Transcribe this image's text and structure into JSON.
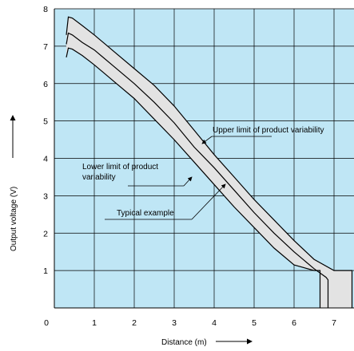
{
  "chart_data": {
    "type": "area",
    "title": "",
    "xlabel": "Distance (m)",
    "ylabel": "Output voltage (V)",
    "xlim": [
      0,
      7.5
    ],
    "ylim": [
      0,
      8
    ],
    "x_ticks": [
      "0",
      "1",
      "2",
      "3",
      "4",
      "5",
      "6",
      "7"
    ],
    "y_ticks": [
      "1",
      "2",
      "3",
      "4",
      "5",
      "6",
      "7",
      "8"
    ],
    "grid": true,
    "background_color": "#bfe6f5",
    "band_color": "#e3e3e3",
    "series": [
      {
        "name": "Upper limit of product variability",
        "x": [
          0.3,
          0.35,
          0.45,
          0.7,
          1.0,
          1.5,
          2.0,
          2.5,
          3.0,
          3.5,
          4.0,
          4.5,
          5.0,
          5.5,
          6.0,
          6.5,
          7.0,
          7.45,
          7.45
        ],
        "y": [
          7.3,
          7.78,
          7.75,
          7.55,
          7.3,
          6.85,
          6.4,
          5.95,
          5.4,
          4.75,
          4.1,
          3.5,
          2.9,
          2.35,
          1.8,
          1.3,
          1.0,
          1.0,
          0
        ]
      },
      {
        "name": "Typical example",
        "x": [
          0.3,
          0.35,
          0.45,
          0.7,
          1.0,
          1.5,
          2.0,
          2.5,
          3.0,
          3.5,
          4.0,
          4.5,
          5.0,
          5.5,
          6.0,
          6.5,
          6.8,
          6.85,
          6.85
        ],
        "y": [
          7.05,
          7.35,
          7.3,
          7.1,
          6.9,
          6.45,
          6.0,
          5.5,
          4.95,
          4.3,
          3.75,
          3.15,
          2.55,
          2.0,
          1.5,
          1.05,
          0.82,
          0.75,
          0
        ]
      },
      {
        "name": "Lower limit of product variability",
        "x": [
          0.3,
          0.35,
          0.45,
          0.7,
          1.0,
          1.5,
          2.0,
          2.5,
          3.0,
          3.5,
          4.0,
          4.5,
          5.0,
          5.5,
          6.0,
          6.5,
          6.65,
          6.65
        ],
        "y": [
          6.7,
          6.95,
          6.92,
          6.75,
          6.5,
          6.05,
          5.6,
          5.05,
          4.5,
          3.9,
          3.3,
          2.7,
          2.15,
          1.6,
          1.15,
          1.0,
          1.0,
          0
        ]
      }
    ],
    "annotations": {
      "upper": "Upper limit of product variability",
      "lower_line1": "Lower limit of product",
      "lower_line2": "variability",
      "typical": "Typical example"
    }
  }
}
